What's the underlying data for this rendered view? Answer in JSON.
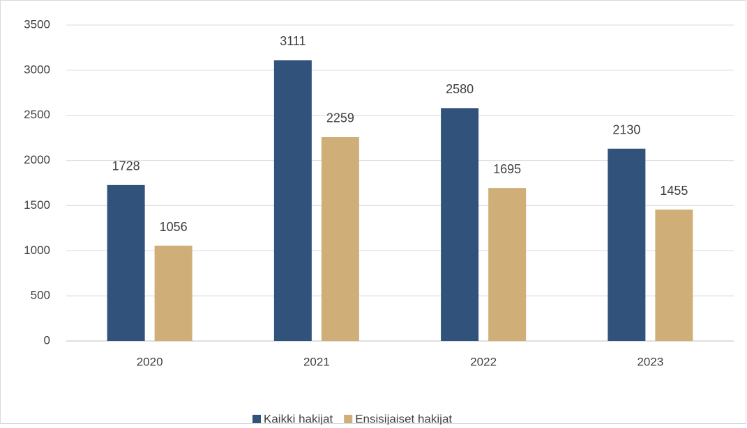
{
  "chart_data": {
    "type": "bar",
    "categories": [
      "2020",
      "2021",
      "2022",
      "2023"
    ],
    "series": [
      {
        "name": "Kaikki hakijat",
        "color": "#31527a",
        "values": [
          1728,
          3111,
          2580,
          2130
        ]
      },
      {
        "name": "Ensisijaiset hakijat",
        "color": "#cfae78",
        "values": [
          1056,
          2259,
          1695,
          1455
        ]
      }
    ],
    "ylim": [
      0,
      3500
    ],
    "yticks": [
      0,
      500,
      1000,
      1500,
      2000,
      2500,
      3000,
      3500
    ],
    "grid": true,
    "legend": "bottom"
  }
}
